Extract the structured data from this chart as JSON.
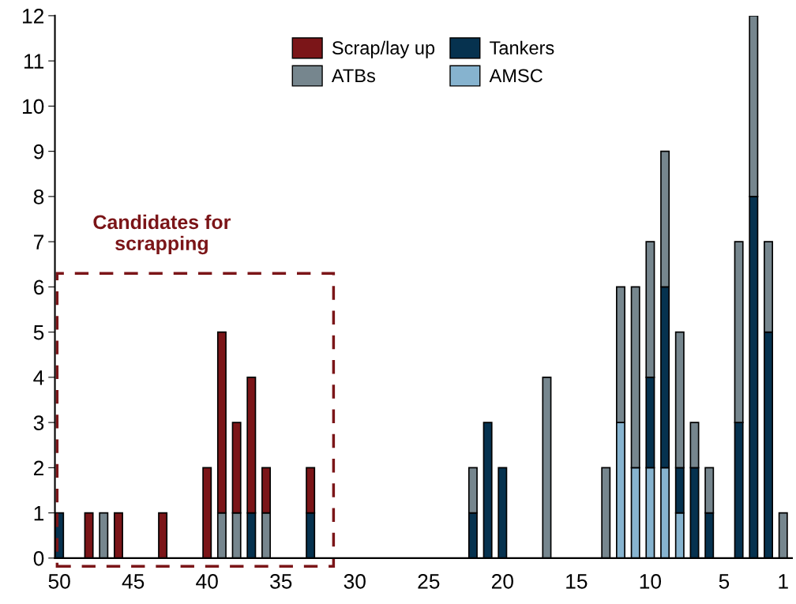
{
  "chart_data": {
    "type": "bar",
    "stacked": true,
    "x": [
      50,
      48,
      47,
      46,
      43,
      40,
      39,
      38,
      37,
      36,
      33,
      22,
      21,
      20,
      17,
      13,
      12,
      11,
      10,
      9,
      8,
      7,
      6,
      4,
      3,
      2,
      1
    ],
    "series": [
      {
        "name": "AMSC",
        "color": "#86b3cf",
        "values": [
          null,
          null,
          null,
          null,
          null,
          null,
          null,
          null,
          null,
          null,
          null,
          null,
          null,
          null,
          null,
          null,
          3,
          2,
          2,
          2,
          1,
          null,
          null,
          null,
          null,
          null,
          null
        ]
      },
      {
        "name": "Tankers",
        "color": "#06324f",
        "values": [
          1,
          null,
          null,
          null,
          null,
          null,
          null,
          null,
          1,
          null,
          1,
          1,
          3,
          2,
          null,
          null,
          null,
          null,
          2,
          4,
          1,
          2,
          1,
          3,
          8,
          5,
          null
        ]
      },
      {
        "name": "ATBs",
        "color": "#76868e",
        "values": [
          null,
          null,
          1,
          null,
          null,
          null,
          1,
          1,
          null,
          1,
          null,
          1,
          null,
          null,
          4,
          2,
          3,
          4,
          3,
          3,
          3,
          1,
          1,
          4,
          4,
          2,
          1
        ]
      },
      {
        "name": "Scrap/lay up",
        "color": "#7b1518",
        "values": [
          null,
          1,
          null,
          1,
          1,
          2,
          4,
          2,
          3,
          1,
          1,
          null,
          null,
          null,
          null,
          null,
          null,
          null,
          null,
          null,
          null,
          null,
          null,
          null,
          null,
          null,
          null
        ]
      }
    ],
    "xlim": [
      50.3,
      0.4
    ],
    "xticks": [
      50,
      45,
      40,
      35,
      30,
      25,
      20,
      15,
      10,
      5,
      1
    ],
    "ylim": [
      0,
      12
    ],
    "yticks": [
      0,
      1,
      2,
      3,
      4,
      5,
      6,
      7,
      8,
      9,
      10,
      11,
      12
    ],
    "grid": false,
    "legend": "top",
    "annotations": [
      "Candidates for\nscrapping"
    ]
  }
}
